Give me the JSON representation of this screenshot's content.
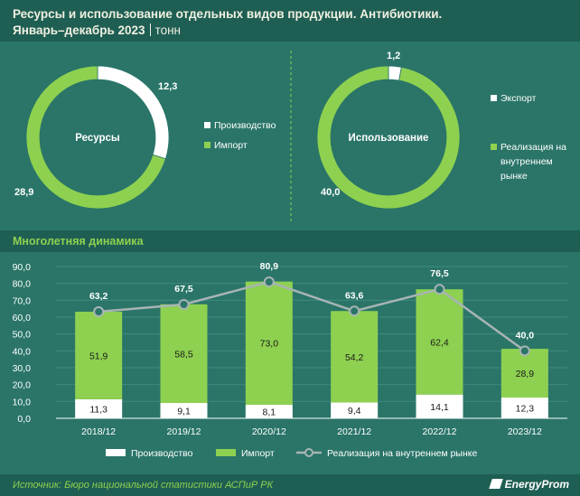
{
  "header": {
    "title_line1": "Ресурсы и использование отдельных видов продукции. Антибиотики.",
    "title_line2": "Январь–декабрь 2023",
    "unit": "тонн"
  },
  "colors": {
    "green": "#8ed150",
    "white": "#ffffff",
    "line": "#a8b4b4",
    "background": "#2a7568"
  },
  "donut_resources": {
    "center_label": "Ресурсы",
    "slices": [
      {
        "name": "Производство",
        "value": 12.3,
        "label": "12,3",
        "color": "#ffffff"
      },
      {
        "name": "Импорт",
        "value": 28.9,
        "label": "28,9",
        "color": "#8ed150"
      }
    ],
    "legend": [
      "Производство",
      "Импорт"
    ]
  },
  "donut_usage": {
    "center_label": "Использование",
    "slices": [
      {
        "name": "Экспорт",
        "value": 1.2,
        "label": "1,2",
        "color": "#ffffff"
      },
      {
        "name": "Реализация на внутреннем рынке",
        "value": 40.0,
        "label": "40,0",
        "color": "#8ed150"
      }
    ],
    "legend": [
      "Экспорт",
      "Реализация на внутреннем рынке"
    ]
  },
  "section_title": "Многолетняя динамика",
  "chart_data": {
    "type": "bar",
    "stacked": true,
    "categories": [
      "2018/12",
      "2019/12",
      "2020/12",
      "2021/12",
      "2022/12",
      "2023/12"
    ],
    "series": [
      {
        "name": "Производство",
        "values": [
          11.3,
          9.1,
          8.1,
          9.4,
          14.1,
          12.3
        ],
        "labels": [
          "11,3",
          "9,1",
          "8,1",
          "9,4",
          "14,1",
          "12,3"
        ],
        "color": "#ffffff"
      },
      {
        "name": "Импорт",
        "values": [
          51.9,
          58.5,
          73.0,
          54.2,
          62.4,
          28.9
        ],
        "labels": [
          "51,9",
          "58,5",
          "73,0",
          "54,2",
          "62,4",
          "28,9"
        ],
        "color": "#8ed150"
      },
      {
        "name": "Реализация на внутреннем рынке",
        "type": "line",
        "values": [
          63.2,
          67.5,
          80.9,
          63.6,
          76.5,
          40.0
        ],
        "labels": [
          "63,2",
          "67,5",
          "80,9",
          "63,6",
          "76,5",
          "40,0"
        ],
        "color": "#a8b4b4"
      }
    ],
    "ylim": [
      0,
      90
    ],
    "yticks": [
      "0,0",
      "10,0",
      "20,0",
      "30,0",
      "40,0",
      "50,0",
      "60,0",
      "70,0",
      "80,0",
      "90,0"
    ],
    "grid": true,
    "legend": "bottom"
  },
  "footer": {
    "source": "Источник: Бюро национальной статистики АСПиР РК",
    "logo": "EnergyProm"
  }
}
